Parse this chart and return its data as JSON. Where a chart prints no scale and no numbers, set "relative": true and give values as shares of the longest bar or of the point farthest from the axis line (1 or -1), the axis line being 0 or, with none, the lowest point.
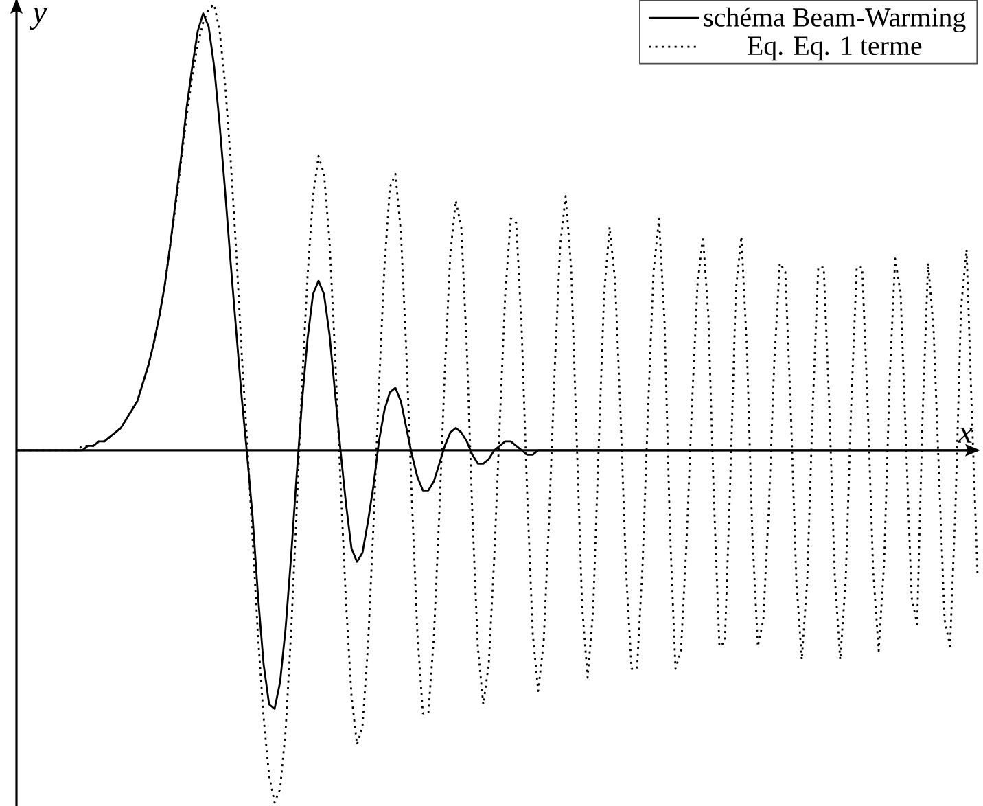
{
  "chart_data": {
    "type": "line",
    "relative": true,
    "xlabel": "x",
    "ylabel": "y",
    "legend": "top right",
    "marker": "none",
    "categories": [
      null,
      null,
      null,
      null,
      null,
      null,
      null,
      null,
      null,
      null,
      null,
      null,
      null,
      null,
      null,
      null,
      null,
      null,
      null,
      null,
      null,
      null,
      null,
      null,
      null,
      null,
      null,
      null,
      null,
      null,
      null,
      null,
      null,
      null,
      null,
      null,
      null,
      null,
      null,
      null,
      null,
      null,
      null,
      null,
      null,
      null,
      null,
      null,
      null,
      null,
      null,
      null,
      null,
      null,
      null,
      null,
      null,
      null,
      null,
      null,
      null,
      null,
      null,
      null,
      null,
      null,
      null,
      null,
      null,
      null,
      null,
      null,
      null,
      null,
      null,
      null,
      null,
      null,
      null,
      null,
      null,
      null,
      null,
      null,
      null,
      null,
      null,
      null,
      null,
      null,
      null,
      null,
      null,
      null,
      null,
      null,
      null,
      null,
      null,
      null,
      null,
      null,
      null,
      null,
      null,
      null,
      null,
      null,
      null,
      null,
      null,
      null,
      null,
      null,
      null,
      null,
      null,
      null,
      null,
      null,
      null,
      null,
      null,
      null,
      null,
      null,
      null,
      null,
      null,
      null,
      null,
      null,
      null,
      null,
      null,
      null,
      null,
      null,
      null,
      null,
      null,
      null,
      null,
      null,
      null,
      null,
      null,
      null,
      null,
      null,
      null,
      null,
      null,
      null,
      null,
      null,
      null,
      null,
      null,
      null,
      null,
      null,
      null,
      null,
      null,
      null,
      null,
      null,
      null,
      null,
      null,
      null,
      null,
      null,
      null,
      null
    ],
    "series": [
      {
        "name": "schéma Beam-Warming",
        "color": "#000000",
        "line_style": "solid",
        "values": [
          0,
          0,
          0,
          0,
          0,
          0,
          0,
          0,
          0,
          0,
          0,
          0,
          0.0,
          0.01,
          0.01,
          0.02,
          0.02,
          0.03,
          0.04,
          0.05,
          0.07,
          0.09,
          0.11,
          0.15,
          0.19,
          0.24,
          0.3,
          0.37,
          0.46,
          0.56,
          0.66,
          0.77,
          0.86,
          0.94,
          0.98,
          0.95,
          0.86,
          0.73,
          0.58,
          0.42,
          0.27,
          0.12,
          -0.01,
          -0.15,
          -0.33,
          -0.48,
          -0.57,
          -0.58,
          -0.52,
          -0.4,
          -0.24,
          -0.06,
          0.11,
          0.25,
          0.35,
          0.38,
          0.35,
          0.26,
          0.13,
          0.0,
          -0.12,
          -0.22,
          -0.25,
          -0.23,
          -0.16,
          -0.08,
          0.02,
          0.09,
          0.13,
          0.14,
          0.11,
          0.05,
          -0.01,
          -0.06,
          -0.09,
          -0.09,
          -0.07,
          -0.03,
          0.01,
          0.04,
          0.05,
          0.04,
          0.02,
          -0.01,
          -0.03,
          -0.03,
          -0.02,
          0.0,
          0.01,
          0.02,
          0.02,
          0.01,
          0.0,
          -0.01,
          -0.01,
          0.0,
          0,
          0,
          0,
          0,
          0,
          0,
          0,
          0,
          0,
          0,
          0,
          0,
          0,
          0,
          0,
          0,
          0,
          0,
          0,
          0,
          0,
          0,
          0,
          0,
          0,
          0,
          0,
          0,
          0,
          0,
          0,
          0,
          0,
          0,
          0,
          0,
          0,
          0,
          0,
          0,
          0,
          0,
          0,
          0,
          0,
          0,
          0,
          0,
          0,
          0,
          0,
          0,
          0,
          0,
          0,
          0,
          0,
          0,
          0,
          0,
          0,
          0,
          0,
          0,
          0,
          0,
          0,
          0,
          0,
          0,
          0,
          0,
          0,
          0,
          0,
          0,
          0,
          0,
          0,
          0
        ]
      },
      {
        "name": "Eq. Eq. 1 terme",
        "color": "#000000",
        "line_style": "dotted",
        "values": [
          0,
          0,
          0,
          0,
          0,
          0,
          0,
          0,
          0,
          0,
          0,
          0,
          0.01,
          0.01,
          0.01,
          0.02,
          0.02,
          0.03,
          0.04,
          0.05,
          0.07,
          0.09,
          0.11,
          0.15,
          0.19,
          0.24,
          0.3,
          0.37,
          0.46,
          0.55,
          0.65,
          0.75,
          0.84,
          0.91,
          0.96,
          0.99,
          1.0,
          0.94,
          0.82,
          0.65,
          0.45,
          0.22,
          0.02,
          -0.2,
          -0.42,
          -0.6,
          -0.73,
          -0.79,
          -0.76,
          -0.63,
          -0.41,
          -0.14,
          0.15,
          0.39,
          0.57,
          0.66,
          0.62,
          0.47,
          0.22,
          -0.07,
          -0.34,
          -0.55,
          -0.66,
          -0.62,
          -0.44,
          -0.17,
          0.14,
          0.41,
          0.59,
          0.62,
          0.49,
          0.22,
          -0.11,
          -0.41,
          -0.59,
          -0.59,
          -0.42,
          -0.14,
          0.18,
          0.44,
          0.56,
          0.5,
          0.23,
          -0.14,
          -0.44,
          -0.57,
          -0.48,
          -0.24,
          0.06,
          0.35,
          0.52,
          0.51,
          0.27,
          -0.1,
          -0.41,
          -0.54,
          -0.43,
          -0.15,
          0.18,
          0.46,
          0.57,
          0.41,
          0.03,
          -0.35,
          -0.51,
          -0.36,
          0.0,
          0.35,
          0.5,
          0.38,
          0.08,
          -0.27,
          -0.49,
          -0.49,
          -0.26,
          0.09,
          0.4,
          0.52,
          0.29,
          -0.18,
          -0.49,
          -0.45,
          -0.21,
          0.1,
          0.37,
          0.48,
          0.3,
          -0.11,
          -0.44,
          -0.43,
          -0.06,
          0.36,
          0.48,
          0.23,
          -0.19,
          -0.44,
          -0.38,
          -0.13,
          0.2,
          0.42,
          0.4,
          0.09,
          -0.29,
          -0.47,
          -0.29,
          0.1,
          0.41,
          0.41,
          0.1,
          -0.28,
          -0.47,
          -0.29,
          0.1,
          0.41,
          0.41,
          0.1,
          -0.27,
          -0.45,
          -0.25,
          0.16,
          0.43,
          0.35,
          0.01,
          -0.33,
          -0.39,
          0.08,
          0.42,
          0.27,
          -0.06,
          -0.38,
          -0.44,
          -0.12,
          0.32,
          0.45,
          0.07,
          -0.28
        ]
      }
    ]
  }
}
